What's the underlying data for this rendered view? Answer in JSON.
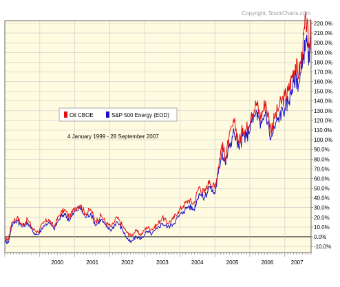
{
  "copyright": "Copyright, StockCharts.com",
  "date_range": "4 January 1999 - 28 September 2007",
  "colors": {
    "series_a": "#e01010",
    "series_b": "#1a10c8",
    "plot_bg": "#fffbe0",
    "grid": "#c8c8c8",
    "zero": "#000000"
  },
  "chart_data": {
    "type": "line",
    "title": "",
    "xlabel": "",
    "ylabel": "",
    "ylim": [
      -10,
      225
    ],
    "y_ticks": [
      "-10.0%",
      "0.0%",
      "10.0%",
      "20.0%",
      "30.0%",
      "40.0%",
      "50.0%",
      "60.0%",
      "70.0%",
      "80.0%",
      "90.0%",
      "100.0%",
      "110.0%",
      "120.0%",
      "130.0%",
      "140.0%",
      "150.0%",
      "160.0%",
      "170.0%",
      "180.0%",
      "190.0%",
      "200.0%",
      "210.0%",
      "220.0%"
    ],
    "y_tick_values": [
      -10,
      0,
      10,
      20,
      30,
      40,
      50,
      60,
      70,
      80,
      90,
      100,
      110,
      120,
      130,
      140,
      150,
      160,
      170,
      180,
      190,
      200,
      210,
      220
    ],
    "x_labels": [
      "2000",
      "2001",
      "2002",
      "2003",
      "2004",
      "2005",
      "2006",
      "2007"
    ],
    "x_label_values": [
      2000.5,
      2001.5,
      2002.5,
      2003.5,
      2004.5,
      2005.5,
      2006.5,
      2007.35
    ],
    "xlim": [
      1999.0,
      2007.75
    ],
    "legend_position": "top-left",
    "series": [
      {
        "name": "Oil CBOE",
        "x": [
          1999.0,
          1999.1,
          1999.2,
          1999.35,
          1999.5,
          1999.65,
          1999.8,
          1999.95,
          2000.1,
          2000.25,
          2000.4,
          2000.55,
          2000.7,
          2000.85,
          2001.0,
          2001.15,
          2001.3,
          2001.45,
          2001.6,
          2001.75,
          2001.9,
          2002.05,
          2002.2,
          2002.35,
          2002.5,
          2002.6,
          2002.75,
          2002.9,
          2003.05,
          2003.2,
          2003.35,
          2003.5,
          2003.65,
          2003.8,
          2003.95,
          2004.1,
          2004.25,
          2004.4,
          2004.55,
          2004.7,
          2004.85,
          2005.0,
          2005.1,
          2005.2,
          2005.3,
          2005.4,
          2005.55,
          2005.7,
          2005.8,
          2005.9,
          2006.05,
          2006.2,
          2006.3,
          2006.45,
          2006.6,
          2006.7,
          2006.85,
          2007.0,
          2007.1,
          2007.2,
          2007.3,
          2007.4,
          2007.5,
          2007.6,
          2007.7,
          2007.74
        ],
        "values": [
          -2,
          -3,
          15,
          20,
          12,
          18,
          8,
          5,
          14,
          18,
          10,
          22,
          28,
          20,
          30,
          33,
          24,
          28,
          16,
          22,
          14,
          10,
          20,
          12,
          4,
          1,
          6,
          2,
          10,
          8,
          12,
          20,
          14,
          18,
          26,
          32,
          38,
          34,
          52,
          45,
          58,
          50,
          72,
          95,
          82,
          100,
          118,
          98,
          112,
          110,
          128,
          138,
          122,
          140,
          110,
          122,
          135,
          145,
          150,
          165,
          178,
          168,
          190,
          225,
          195,
          215
        ]
      },
      {
        "name": "S&P 500 Energy (EOD)",
        "x": [
          1999.0,
          1999.1,
          1999.2,
          1999.35,
          1999.5,
          1999.65,
          1999.8,
          1999.95,
          2000.1,
          2000.25,
          2000.4,
          2000.55,
          2000.7,
          2000.85,
          2001.0,
          2001.15,
          2001.3,
          2001.45,
          2001.6,
          2001.75,
          2001.9,
          2002.05,
          2002.2,
          2002.35,
          2002.5,
          2002.6,
          2002.75,
          2002.9,
          2003.05,
          2003.2,
          2003.35,
          2003.5,
          2003.65,
          2003.8,
          2003.95,
          2004.1,
          2004.25,
          2004.4,
          2004.55,
          2004.7,
          2004.85,
          2005.0,
          2005.1,
          2005.2,
          2005.3,
          2005.4,
          2005.55,
          2005.7,
          2005.8,
          2005.9,
          2006.05,
          2006.2,
          2006.3,
          2006.45,
          2006.6,
          2006.7,
          2006.85,
          2007.0,
          2007.1,
          2007.2,
          2007.3,
          2007.4,
          2007.5,
          2007.6,
          2007.7,
          2007.74
        ],
        "values": [
          -4,
          -6,
          12,
          17,
          10,
          15,
          5,
          2,
          11,
          15,
          8,
          18,
          24,
          17,
          26,
          30,
          20,
          24,
          12,
          18,
          10,
          7,
          16,
          8,
          -2,
          -6,
          0,
          -2,
          5,
          3,
          8,
          14,
          10,
          13,
          20,
          26,
          32,
          28,
          45,
          40,
          52,
          44,
          65,
          88,
          75,
          92,
          108,
          90,
          104,
          102,
          118,
          128,
          112,
          130,
          100,
          112,
          125,
          133,
          140,
          152,
          165,
          158,
          175,
          205,
          180,
          208
        ]
      }
    ]
  }
}
